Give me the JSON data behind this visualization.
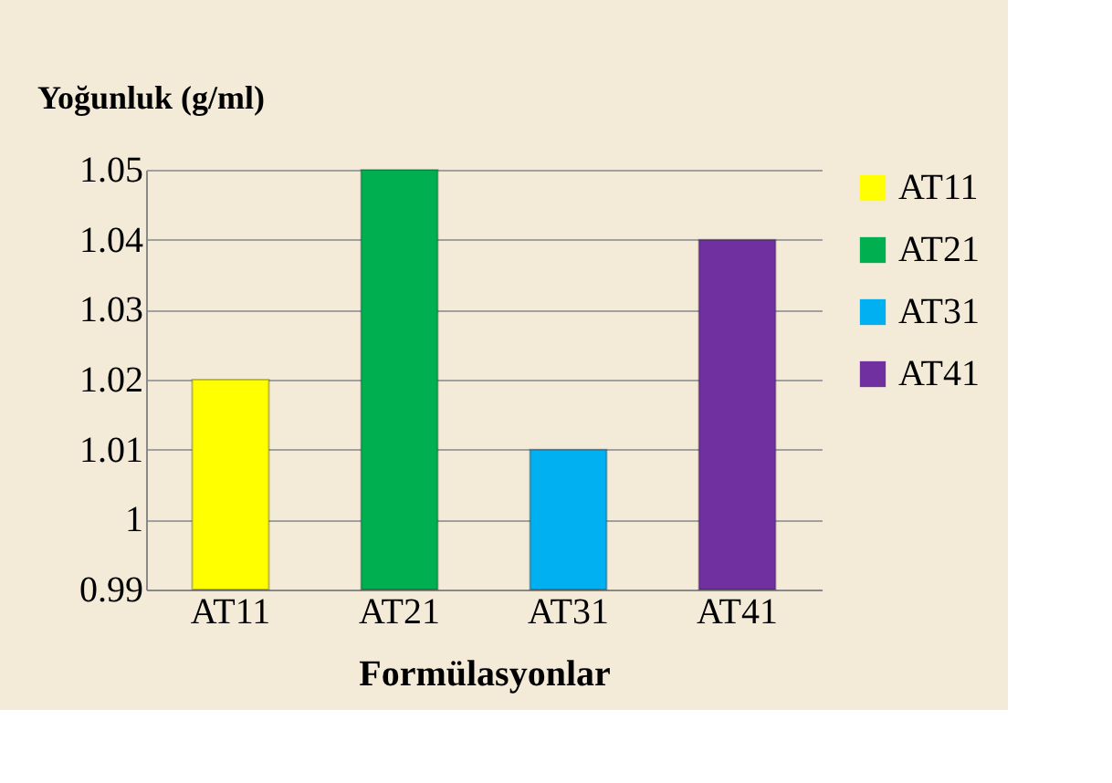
{
  "chart_data": {
    "type": "bar",
    "ylabel": "Yoğunluk (g/ml)",
    "xlabel": "Formülasyonlar",
    "categories": [
      "AT11",
      "AT21",
      "AT31",
      "AT41"
    ],
    "series": [
      {
        "name": "AT11",
        "color": "#ffff00",
        "values": [
          1.02,
          null,
          null,
          null
        ]
      },
      {
        "name": "AT21",
        "color": "#00b050",
        "values": [
          null,
          1.05,
          null,
          null
        ]
      },
      {
        "name": "AT31",
        "color": "#00b0f0",
        "values": [
          null,
          null,
          1.01,
          null
        ]
      },
      {
        "name": "AT41",
        "color": "#7030a0",
        "values": [
          null,
          null,
          null,
          1.04
        ]
      }
    ],
    "ylim": [
      0.99,
      1.05
    ],
    "yticks": [
      0.99,
      1,
      1.01,
      1.02,
      1.03,
      1.04,
      1.05
    ],
    "grid": "y",
    "legend": "right"
  }
}
